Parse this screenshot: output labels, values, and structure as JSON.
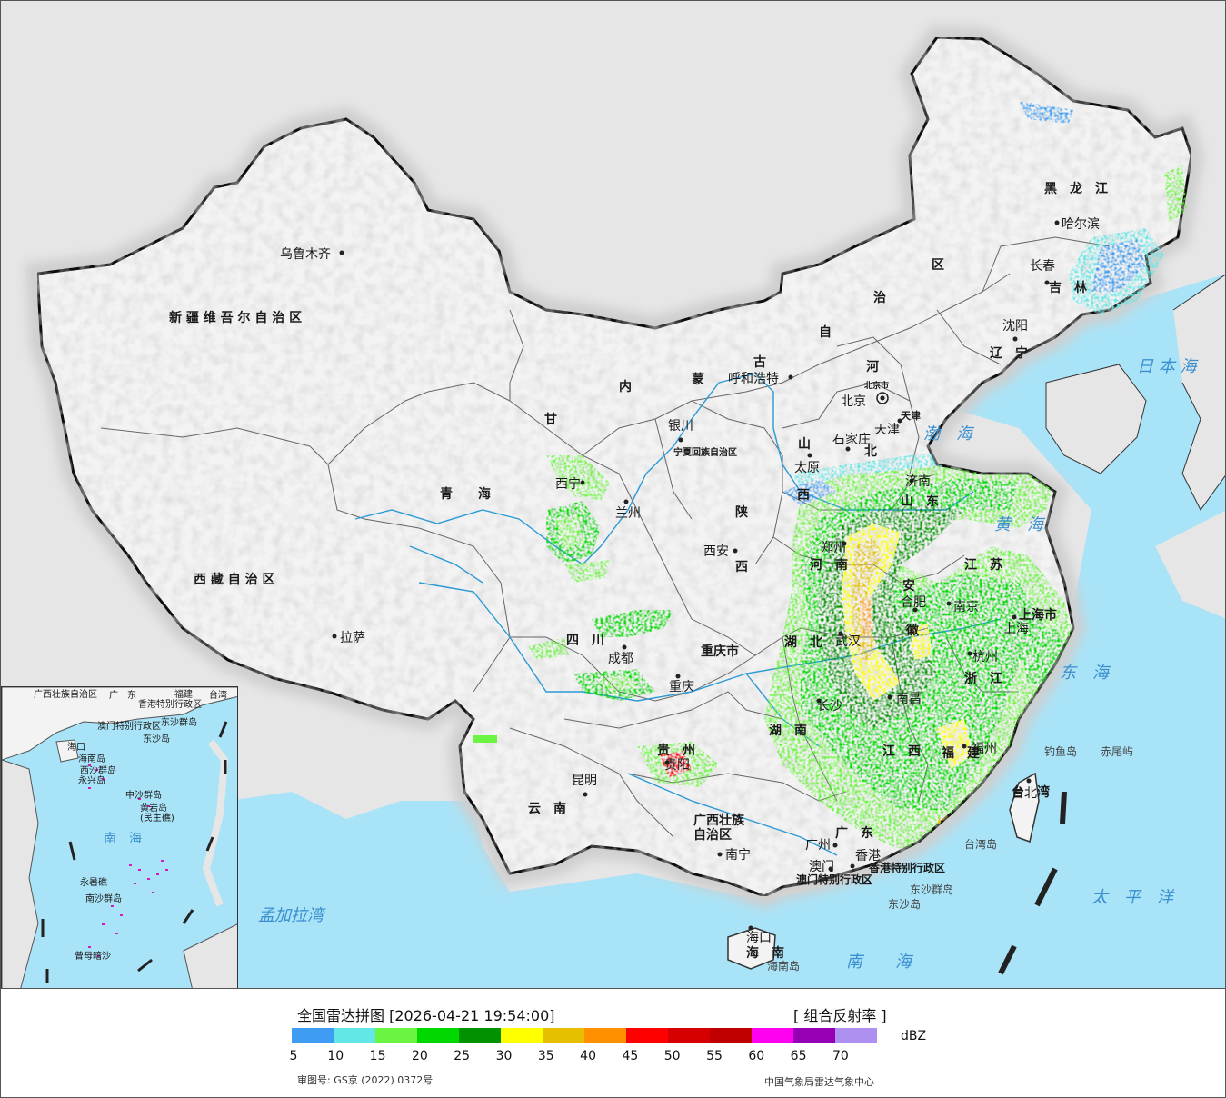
{
  "map": {
    "provinces": [
      {
        "id": "xinjiang",
        "name": "新 疆 维 吾 尔 自 治 区"
      },
      {
        "id": "xizang",
        "name": "西 藏 自 治 区"
      },
      {
        "id": "qinghai",
        "name": "青　　海"
      },
      {
        "id": "gansu",
        "name": "甘"
      },
      {
        "id": "sichuan",
        "name": "四　川"
      },
      {
        "id": "yunnan",
        "name": "云　南"
      },
      {
        "id": "guizhou",
        "name": "贵　州"
      },
      {
        "id": "guangxi",
        "name": "广西壮族\n自治区"
      },
      {
        "id": "guangdong",
        "name": "广　东"
      },
      {
        "id": "hainan",
        "name": "海　南"
      },
      {
        "id": "neimenggu-nei",
        "name": "内"
      },
      {
        "id": "neimenggu-meng",
        "name": "蒙"
      },
      {
        "id": "neimenggu-gu",
        "name": "古"
      },
      {
        "id": "neimenggu-zi",
        "name": "自"
      },
      {
        "id": "neimenggu-zhi",
        "name": "治"
      },
      {
        "id": "neimenggu-qu",
        "name": "区"
      },
      {
        "id": "heilongjiang",
        "name": "黑　龙　江"
      },
      {
        "id": "jilin",
        "name": "吉　林"
      },
      {
        "id": "liaoning",
        "name": "辽　宁"
      },
      {
        "id": "hebei-he",
        "name": "河"
      },
      {
        "id": "hebei-bei",
        "name": "北"
      },
      {
        "id": "shanxi-shan",
        "name": "山"
      },
      {
        "id": "shanxi-xi",
        "name": "西"
      },
      {
        "id": "shaanxi-shan",
        "name": "陕"
      },
      {
        "id": "shaanxi-xi",
        "name": "西"
      },
      {
        "id": "ningxia",
        "name": "宁夏回族自治区"
      },
      {
        "id": "chongqing",
        "name": "重庆市"
      },
      {
        "id": "henan",
        "name": "河　南"
      },
      {
        "id": "shandong",
        "name": "山　东"
      },
      {
        "id": "anhui-an",
        "name": "安"
      },
      {
        "id": "anhui-hui",
        "name": "徽"
      },
      {
        "id": "jiangsu",
        "name": "江　苏"
      },
      {
        "id": "shanghai",
        "name": "上海市"
      },
      {
        "id": "zhejiang",
        "name": "浙　江"
      },
      {
        "id": "hubei",
        "name": "湖　北"
      },
      {
        "id": "hunan",
        "name": "湖　南"
      },
      {
        "id": "jiangxi",
        "name": "江　西"
      },
      {
        "id": "fujian",
        "name": "福　建"
      },
      {
        "id": "taiwan",
        "name": "台　湾"
      },
      {
        "id": "tianjin",
        "name": "天津"
      },
      {
        "id": "beijing-shi",
        "name": "北京市"
      },
      {
        "id": "hongkong",
        "name": "香港特别行政区"
      },
      {
        "id": "macao",
        "name": "澳门特别行政区"
      }
    ],
    "cities": [
      {
        "id": "urumqi",
        "name": "乌鲁木齐"
      },
      {
        "id": "lhasa",
        "name": "拉萨"
      },
      {
        "id": "xining",
        "name": "西宁"
      },
      {
        "id": "lanzhou",
        "name": "兰州"
      },
      {
        "id": "yinchuan",
        "name": "银川"
      },
      {
        "id": "hohhot",
        "name": "呼和浩特"
      },
      {
        "id": "harbin",
        "name": "哈尔滨"
      },
      {
        "id": "changchun",
        "name": "长春"
      },
      {
        "id": "shenyang",
        "name": "沈阳"
      },
      {
        "id": "beijing",
        "name": "北京"
      },
      {
        "id": "tianjin-city",
        "name": "天津"
      },
      {
        "id": "shijiazhuang",
        "name": "石家庄"
      },
      {
        "id": "taiyuan",
        "name": "太原"
      },
      {
        "id": "jinan",
        "name": "济南"
      },
      {
        "id": "zhengzhou",
        "name": "郑州"
      },
      {
        "id": "xian",
        "name": "西安"
      },
      {
        "id": "chengdu",
        "name": "成都"
      },
      {
        "id": "chongqing-city",
        "name": "重庆"
      },
      {
        "id": "wuhan",
        "name": "武汉"
      },
      {
        "id": "hefei",
        "name": "合肥"
      },
      {
        "id": "nanjing",
        "name": "南京"
      },
      {
        "id": "shanghai-city",
        "name": "上海"
      },
      {
        "id": "hangzhou",
        "name": "杭州"
      },
      {
        "id": "nanchang",
        "name": "南昌"
      },
      {
        "id": "fuzhou",
        "name": "福州"
      },
      {
        "id": "taibei",
        "name": "台北"
      },
      {
        "id": "guiyang",
        "name": "贵阳"
      },
      {
        "id": "kunming",
        "name": "昆明"
      },
      {
        "id": "nanning",
        "name": "南宁"
      },
      {
        "id": "guangzhou",
        "name": "广州"
      },
      {
        "id": "hongkong-city",
        "name": "香港"
      },
      {
        "id": "macao-city",
        "name": "澳门"
      },
      {
        "id": "haikou",
        "name": "海口"
      },
      {
        "id": "changsha",
        "name": "长沙"
      }
    ],
    "seas": [
      {
        "id": "bohai",
        "name": "渤　海"
      },
      {
        "id": "huanghai",
        "name": "黄　海"
      },
      {
        "id": "donghai",
        "name": "东　海"
      },
      {
        "id": "nanhai",
        "name": "南　　海"
      },
      {
        "id": "riben",
        "name": "日 本 海"
      },
      {
        "id": "taipingyang",
        "name": "太　平　洋"
      },
      {
        "id": "mengjiala",
        "name": "孟加拉湾"
      }
    ],
    "islands": [
      {
        "id": "diaoyu",
        "name": "钓鱼岛"
      },
      {
        "id": "chiwei",
        "name": "赤尾屿"
      },
      {
        "id": "taiwan-dao",
        "name": "台湾岛"
      },
      {
        "id": "dongsha-qundao",
        "name": "东沙群岛"
      },
      {
        "id": "dongsha-dao",
        "name": "东沙岛"
      },
      {
        "id": "hainan-dao",
        "name": "海南岛"
      }
    ],
    "inset_labels": [
      {
        "id": "i-gx",
        "name": "广西壮族自治区"
      },
      {
        "id": "i-gd",
        "name": "广　东"
      },
      {
        "id": "i-fj",
        "name": "福建"
      },
      {
        "id": "i-tw",
        "name": "台湾"
      },
      {
        "id": "i-hk",
        "name": "香港特别行政区"
      },
      {
        "id": "i-mo",
        "name": "澳门特别行政区"
      },
      {
        "id": "i-dsqd",
        "name": "东沙群岛"
      },
      {
        "id": "i-dsd",
        "name": "东沙岛"
      },
      {
        "id": "i-hk2",
        "name": "海口"
      },
      {
        "id": "i-hn",
        "name": "海南岛"
      },
      {
        "id": "i-xsqd",
        "name": "西沙群岛"
      },
      {
        "id": "i-yxd",
        "name": "永兴岛"
      },
      {
        "id": "i-zsqd",
        "name": "中沙群岛"
      },
      {
        "id": "i-hyd",
        "name": "黄岩岛\n(民主礁)"
      },
      {
        "id": "i-nh",
        "name": "南　海"
      },
      {
        "id": "i-nsqd",
        "name": "南沙群岛"
      },
      {
        "id": "i-ysj",
        "name": "永暑礁"
      },
      {
        "id": "i-zmas",
        "name": "曾母暗沙"
      }
    ]
  },
  "legend": {
    "title": "全国雷达拼图 [2026-04-21 19:54:00]",
    "product": "[ 组合反射率 ]",
    "unit": "dBZ",
    "colors": [
      "#3e9cf2",
      "#62e6e6",
      "#6cf442",
      "#00d800",
      "#009200",
      "#ffff00",
      "#e6c000",
      "#ff9000",
      "#ff0000",
      "#d60000",
      "#c00000",
      "#ff00f0",
      "#9600b4",
      "#ad90f0"
    ],
    "ticks": [
      "5",
      "10",
      "15",
      "20",
      "25",
      "30",
      "35",
      "40",
      "45",
      "50",
      "55",
      "60",
      "65",
      "70"
    ],
    "review_number": "审图号: GS京 (2022) 0372号",
    "credit": "中国气象局雷达气象中心"
  }
}
